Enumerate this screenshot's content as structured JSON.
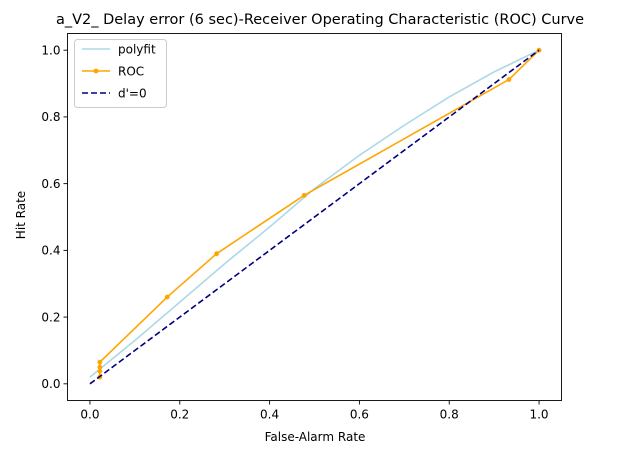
{
  "chart_data": {
    "type": "line",
    "title": "a_V2_ Delay error (6 sec)-Receiver Operating Characteristic (ROC) Curve",
    "xlabel": "False-Alarm Rate",
    "ylabel": "Hit Rate",
    "xlim": [
      -0.05,
      1.05
    ],
    "ylim": [
      -0.05,
      1.05
    ],
    "xticks": [
      "0.0",
      "0.2",
      "0.4",
      "0.6",
      "0.8",
      "1.0"
    ],
    "yticks": [
      "0.0",
      "0.2",
      "0.4",
      "0.6",
      "0.8",
      "1.0"
    ],
    "grid": false,
    "legend_position": "top-left",
    "series": [
      {
        "name": "polyfit",
        "style": "solid",
        "marker": "none",
        "color": "#add8e6",
        "x": [
          0.0,
          0.1,
          0.2,
          0.3,
          0.4,
          0.5,
          0.6,
          0.7,
          0.8,
          0.9,
          1.0
        ],
        "y": [
          0.02,
          0.13,
          0.245,
          0.36,
          0.47,
          0.585,
          0.685,
          0.775,
          0.86,
          0.935,
          1.0
        ]
      },
      {
        "name": "ROC",
        "style": "solid",
        "marker": "dot",
        "color": "#ffa500",
        "x": [
          0.022,
          0.022,
          0.022,
          0.022,
          0.172,
          0.282,
          0.477,
          0.933,
          1.0
        ],
        "y": [
          0.02,
          0.038,
          0.05,
          0.065,
          0.26,
          0.39,
          0.565,
          0.912,
          1.0
        ]
      },
      {
        "name": "d'=0",
        "style": "dashed",
        "marker": "none",
        "color": "#000080",
        "x": [
          0.0,
          1.0
        ],
        "y": [
          0.0,
          1.0
        ]
      }
    ]
  }
}
